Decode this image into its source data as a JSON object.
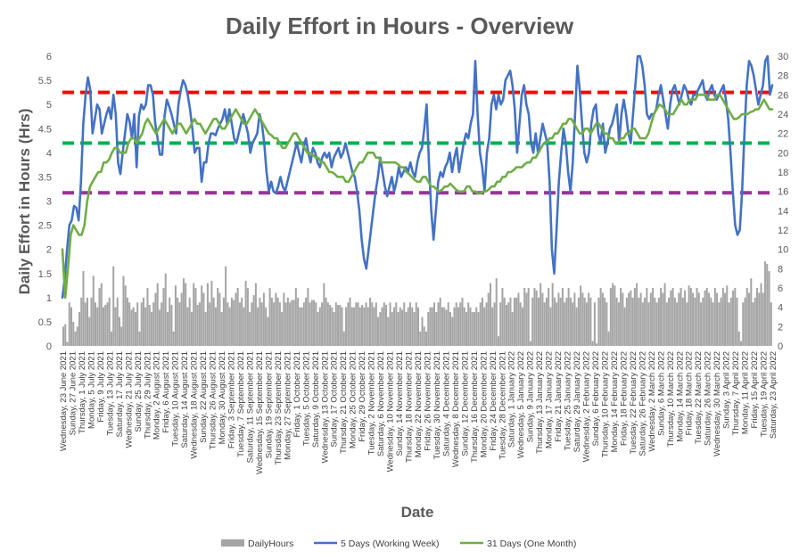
{
  "chart_data": {
    "type": "bar",
    "title": "Daily Effort in Hours - Overview",
    "xlabel": "Date",
    "ylabel": "Daily Effort in Hours (Hrs)",
    "ylim": [
      0,
      6
    ],
    "y_ticks": [
      "0",
      "0.5",
      "1",
      "1.5",
      "2",
      "2.5",
      "3",
      "3.5",
      "4",
      "4.5",
      "5",
      "5.5",
      "6"
    ],
    "y2lim": [
      0,
      30
    ],
    "y2_ticks": [
      "0",
      "2",
      "4",
      "6",
      "8",
      "10",
      "12",
      "14",
      "16",
      "18",
      "20",
      "22",
      "24",
      "26",
      "28",
      "30"
    ],
    "grid": false,
    "legend_position": "bottom",
    "x_tick_labels": [
      "Wednesday, 23 June 2021",
      "Sunday, 27 June 2021",
      "Thursday, 1 July 2021",
      "Monday, 5 July 2021",
      "Friday, 9 July 2021",
      "Tuesday, 13 July 2021",
      "Saturday, 17 July 2021",
      "Wednesday, 21 July 2021",
      "Sunday, 25 July 2021",
      "Thursday, 29 July 2021",
      "Monday, 2 August 2021",
      "Friday, 6 August 2021",
      "Tuesday, 10 August 2021",
      "Saturday, 14 August 2021",
      "Wednesday, 18 August 2021",
      "Sunday, 22 August 2021",
      "Thursday, 26 August 2021",
      "Monday, 30 August 2021",
      "Friday, 3 September 2021",
      "Tuesday, 7 September 2021",
      "Saturday, 11 September 2021",
      "Wednesday, 15 September 2021",
      "Sunday, 19 September 2021",
      "Thursday, 23 September 2021",
      "Monday, 27 September 2021",
      "Friday, 1 October 2021",
      "Tuesday, 5 October 2021",
      "Saturday, 9 October 2021",
      "Wednesday, 13 October 2021",
      "Sunday, 17 October 2021",
      "Thursday, 21 October 2021",
      "Monday, 25 October 2021",
      "Friday, 29 October 2021",
      "Tuesday, 2 November 2021",
      "Saturday, 6 November 2021",
      "Wednesday, 10 November 2021",
      "Sunday, 14 November 2021",
      "Thursday, 18 November 2021",
      "Monday, 22 November 2021",
      "Friday, 26 November 2021",
      "Tuesday, 30 November 2021",
      "Saturday, 4 December 2021",
      "Wednesday, 8 December 2021",
      "Sunday, 12 December 2021",
      "Thursday, 16 December 2021",
      "Monday, 20 December 2021",
      "Friday, 24 December 2021",
      "Tuesday, 28 December 2021",
      "Saturday, 1 January 2022",
      "Wednesday, 5 January 2022",
      "Sunday, 9 January 2022",
      "Thursday, 13 January 2022",
      "Monday, 17 January 2022",
      "Friday, 21 January 2022",
      "Tuesday, 25 January 2022",
      "Saturday, 29 January 2022",
      "Wednesday, 2 February 2022",
      "Sunday, 6 February 2022",
      "Thursday, 10 February 2022",
      "Monday, 14 February 2022",
      "Friday, 18 February 2022",
      "Tuesday, 22 February 2022",
      "Saturday, 26 February 2022",
      "Wednesday, 2 March 2022",
      "Sunday, 6 March 2022",
      "Thursday, 10 March 2022",
      "Monday, 14 March 2022",
      "Friday, 18 March 2022",
      "Tuesday, 22 March 2022",
      "Saturday, 26 March 2022",
      "Wednesday, 30 March 2022",
      "Sunday, 3 April 2022",
      "Thursday, 7 April 2022",
      "Monday, 11 April 2022",
      "Friday, 15 April 2022",
      "Tuesday, 19 April 2022",
      "Saturday, 23 April 2022"
    ],
    "colors": {
      "bars": "#a5a5a5",
      "line_5day": "#4472c4",
      "line_31day": "#70ad47",
      "ref_red": "#ff0000",
      "ref_green": "#00b050",
      "ref_purple": "#993399",
      "title": "#595959",
      "axis_text": "#595959"
    },
    "reference_lines": [
      {
        "axis": "left",
        "value": 5.25,
        "color": "#ff0000"
      },
      {
        "axis": "left",
        "value": 4.2,
        "color": "#00b050"
      },
      {
        "axis": "left",
        "value": 3.17,
        "color": "#993399"
      }
    ],
    "series": [
      {
        "name": "DailyHours",
        "axis": "left",
        "kind": "bar",
        "values": [
          0.4,
          0.45,
          0.08,
          0.9,
          0.8,
          0.5,
          0.3,
          0.4,
          0.7,
          1.0,
          1.55,
          0.9,
          1.0,
          0.6,
          1.0,
          1.45,
          0.9,
          0.8,
          1.2,
          1.3,
          0.8,
          0.85,
          0.9,
          1.0,
          0.3,
          1.65,
          0.8,
          1.0,
          0.6,
          0.4,
          1.45,
          1.25,
          1.0,
          0.9,
          0.75,
          0.8,
          0.7,
          0.9,
          0.3,
          0.9,
          1.0,
          0.8,
          1.2,
          0.85,
          0.7,
          0.9,
          1.1,
          1.3,
          0.75,
          0.9,
          1.2,
          1.5,
          0.7,
          1.0,
          0.85,
          0.3,
          1.25,
          1.0,
          0.9,
          1.1,
          1.4,
          1.3,
          0.8,
          1.0,
          0.7,
          1.3,
          1.2,
          0.85,
          0.9,
          1.25,
          1.1,
          0.7,
          1.3,
          0.9,
          1.35,
          1.0,
          0.8,
          1.2,
          1.1,
          0.7,
          1.0,
          1.65,
          0.9,
          0.8,
          1.0,
          0.95,
          1.1,
          1.2,
          0.9,
          1.0,
          0.8,
          1.35,
          1.2,
          0.7,
          0.9,
          1.05,
          1.3,
          0.8,
          1.0,
          0.9,
          1.1,
          0.8,
          0.6,
          1.2,
          1.0,
          0.9,
          1.1,
          1.0,
          0.9,
          0.7,
          1.1,
          0.9,
          1.0,
          0.9,
          0.95,
          0.95,
          1.2,
          1.0,
          0.8,
          0.8,
          0.9,
          1.0,
          1.2,
          0.9,
          0.95,
          0.95,
          0.9,
          0.7,
          0.8,
          0.9,
          1.3,
          1.0,
          0.9,
          0.85,
          0.8,
          0.7,
          0.9,
          0.85,
          0.85,
          0.8,
          0.3,
          0.8,
          0.9,
          1.0,
          0.8,
          0.8,
          0.9,
          0.9,
          0.8,
          0.85,
          0.8,
          0.9,
          0.8,
          1.0,
          0.9,
          0.8,
          0.9,
          0.6,
          0.7,
          0.8,
          0.9,
          0.85,
          0.6,
          0.9,
          0.7,
          0.8,
          0.9,
          0.7,
          0.8,
          0.75,
          0.9,
          0.7,
          0.8,
          0.9,
          0.8,
          0.7,
          0.9,
          0.8,
          0.3,
          0.6,
          0.4,
          0.3,
          0.7,
          0.8,
          0.8,
          0.9,
          0.7,
          0.9,
          1.0,
          0.8,
          0.8,
          0.75,
          0.9,
          0.7,
          0.6,
          0.8,
          0.9,
          0.8,
          0.9,
          1.0,
          0.8,
          0.7,
          0.9,
          0.8,
          0.7,
          0.7,
          0.8,
          0.7,
          0.9,
          1.0,
          0.8,
          0.9,
          1.1,
          1.3,
          0.8,
          0.9,
          1.4,
          0.2,
          0.9,
          1.2,
          1.0,
          0.85,
          0.9,
          1.0,
          0.7,
          1.0,
          1.0,
          1.1,
          0.9,
          0.8,
          1.2,
          1.1,
          1.2,
          0.1,
          1.0,
          1.2,
          1.15,
          1.0,
          1.3,
          1.1,
          0.9,
          1.0,
          1.2,
          0.8,
          1.3,
          1.0,
          0.9,
          1.1,
          1.0,
          1.2,
          0.9,
          1.0,
          1.2,
          1.0,
          0.9,
          1.1,
          0.8,
          1.0,
          1.25,
          1.1,
          1.0,
          0.9,
          1.1,
          1.0,
          0.1,
          0.9,
          0.05,
          1.0,
          1.2,
          1.1,
          1.0,
          0.9,
          0.3,
          1.2,
          1.3,
          1.25,
          1.0,
          0.9,
          1.2,
          1.1,
          0.8,
          1.0,
          1.1,
          1.15,
          1.0,
          1.2,
          1.3,
          1.0,
          1.1,
          0.9,
          1.0,
          1.2,
          0.9,
          1.1,
          1.2,
          1.0,
          0.9,
          1.0,
          1.2,
          1.1,
          1.3,
          0.9,
          1.0,
          1.15,
          1.2,
          1.0,
          0.9,
          1.1,
          1.2,
          1.0,
          1.15,
          0.9,
          1.25,
          1.2,
          1.1,
          1.0,
          1.2,
          1.1,
          0.9,
          1.0,
          1.15,
          1.2,
          1.1,
          1.0,
          0.9,
          1.2,
          1.1,
          0.9,
          1.0,
          1.2,
          1.1,
          1.25,
          0.9,
          1.0,
          1.15,
          1.2,
          1.0,
          0.3,
          0.1,
          0.9,
          1.0,
          1.2,
          1.1,
          1.4,
          0.9,
          1.0,
          1.2,
          1.1,
          1.3,
          1.1,
          1.75,
          1.7,
          1.55,
          0.9
        ]
      },
      {
        "name": "5 Days (Working Week)",
        "axis": "right",
        "kind": "line",
        "values": [
          5.0,
          7.0,
          10.0,
          12.5,
          13.0,
          14.5,
          14.3,
          13.0,
          17.0,
          23.0,
          26.0,
          27.8,
          26.5,
          22.0,
          23.5,
          25.0,
          24.5,
          22.0,
          23.0,
          24.0,
          24.7,
          23.5,
          26.0,
          24.0,
          19.0,
          17.8,
          20.0,
          22.0,
          24.0,
          23.2,
          21.5,
          24.0,
          18.5,
          23.8,
          25.0,
          24.5,
          25.0,
          27.0,
          27.0,
          26.0,
          23.0,
          21.5,
          19.8,
          19.8,
          23.8,
          25.5,
          24.8,
          24.0,
          23.0,
          22.0,
          25.0,
          26.5,
          27.5,
          27.0,
          26.0,
          24.5,
          22.5,
          20.0,
          20.5,
          20.5,
          17.0,
          19.0,
          19.0,
          21.0,
          22.0,
          22.0,
          21.8,
          22.5,
          23.0,
          23.5,
          24.5,
          23.0,
          24.5,
          23.0,
          21.5,
          21.0,
          22.0,
          23.0,
          24.0,
          23.0,
          22.0,
          20.0,
          21.0,
          21.5,
          22.0,
          24.0,
          23.0,
          21.0,
          18.0,
          16.0,
          17.0,
          16.0,
          15.8,
          16.5,
          17.5,
          16.5,
          16.0,
          17.0,
          18.0,
          19.0,
          20.0,
          21.0,
          20.0,
          19.0,
          20.5,
          21.5,
          20.0,
          19.0,
          20.5,
          20.0,
          19.0,
          18.5,
          19.5,
          20.0,
          19.5,
          20.0,
          18.5,
          19.5,
          20.0,
          20.5,
          19.5,
          20.0,
          21.0,
          20.0,
          19.0,
          18.0,
          17.5,
          16.0,
          14.0,
          11.0,
          9.0,
          8.0,
          10.0,
          12.0,
          14.0,
          16.0,
          17.5,
          19.5,
          18.0,
          16.5,
          15.5,
          16.5,
          17.5,
          16.0,
          17.0,
          18.5,
          17.5,
          18.0,
          18.5,
          18.0,
          19.0,
          18.0,
          17.5,
          19.0,
          20.0,
          20.5,
          22.5,
          25.0,
          19.0,
          14.0,
          11.0,
          14.0,
          17.0,
          18.0,
          17.5,
          18.5,
          19.0,
          20.0,
          18.0,
          19.5,
          20.5,
          18.0,
          19.5,
          21.0,
          22.0,
          21.5,
          23.0,
          24.0,
          29.5,
          24.0,
          20.0,
          18.5,
          16.0,
          20.0,
          21.5,
          25.0,
          26.0,
          24.5,
          26.0,
          25.0,
          25.5,
          27.5,
          28.0,
          28.5,
          27.0,
          24.5,
          20.0,
          23.0,
          26.0,
          27.0,
          25.0,
          24.0,
          21.0,
          20.0,
          22.0,
          20.0,
          21.5,
          23.0,
          22.0,
          21.0,
          17.0,
          10.0,
          7.5,
          12.0,
          17.0,
          20.0,
          22.5,
          21.0,
          18.0,
          16.0,
          19.0,
          24.0,
          29.0,
          26.5,
          23.0,
          20.0,
          19.0,
          20.0,
          23.0,
          24.5,
          25.0,
          22.0,
          21.0,
          23.0,
          20.0,
          21.0,
          22.5,
          23.0,
          24.0,
          25.0,
          21.0,
          24.0,
          25.5,
          24.0,
          22.0,
          21.0,
          24.0,
          27.0,
          30.0,
          30.0,
          29.0,
          27.0,
          24.0,
          23.5,
          24.0,
          24.0,
          24.5,
          26.0,
          27.0,
          25.5,
          24.0,
          22.5,
          25.0,
          26.5,
          27.0,
          26.0,
          25.0,
          26.0,
          27.0,
          26.5,
          25.5,
          25.0,
          26.0,
          26.0,
          26.5,
          27.0,
          27.5,
          26.0,
          25.5,
          26.5,
          27.0,
          26.0,
          25.5,
          26.0,
          26.5,
          27.0,
          25.5,
          23.5,
          20.0,
          16.0,
          12.5,
          11.5,
          12.0,
          16.0,
          22.0,
          27.0,
          29.5,
          29.0,
          28.0,
          26.5,
          25.0,
          26.0,
          27.0,
          29.5,
          30.0,
          26.0,
          27.0
        ]
      },
      {
        "name": "31 Days (One Month)",
        "axis": "right",
        "kind": "line",
        "values": [
          10.0,
          5.0,
          8.0,
          11.5,
          12.5,
          12.0,
          11.5,
          11.5,
          12.5,
          15.0,
          16.5,
          17.0,
          17.5,
          18.0,
          18.0,
          19.0,
          19.0,
          19.3,
          20.0,
          20.5,
          20.5,
          20.0,
          20.0,
          20.0,
          21.0,
          21.5,
          21.5,
          21.0,
          21.5,
          22.0,
          23.0,
          23.5,
          23.0,
          22.5,
          22.0,
          22.5,
          23.0,
          23.5,
          23.0,
          22.5,
          22.0,
          22.5,
          23.0,
          23.0,
          22.5,
          22.0,
          22.5,
          23.0,
          23.5,
          23.0,
          23.0,
          22.5,
          22.0,
          22.5,
          23.0,
          23.5,
          23.5,
          23.0,
          22.5,
          22.5,
          23.0,
          23.5,
          24.0,
          24.5,
          24.0,
          23.5,
          23.0,
          23.0,
          23.5,
          24.0,
          24.5,
          24.0,
          23.5,
          23.0,
          22.5,
          22.0,
          21.8,
          21.5,
          21.5,
          21.0,
          20.5,
          20.5,
          21.0,
          21.5,
          22.0,
          22.0,
          21.5,
          21.0,
          20.5,
          20.0,
          20.0,
          19.8,
          19.5,
          19.5,
          19.0,
          19.0,
          18.5,
          18.0,
          18.0,
          17.8,
          17.5,
          17.5,
          17.5,
          17.0,
          17.0,
          17.5,
          18.0,
          18.5,
          19.0,
          19.0,
          19.5,
          20.0,
          20.0,
          20.0,
          19.5,
          19.5,
          19.0,
          19.0,
          19.0,
          19.0,
          19.0,
          19.0,
          18.8,
          18.5,
          18.5,
          18.0,
          17.8,
          17.5,
          17.2,
          17.0,
          17.0,
          17.5,
          17.5,
          17.0,
          16.5,
          16.5,
          16.2,
          16.0,
          16.2,
          16.5,
          16.5,
          16.8,
          16.5,
          16.2,
          16.0,
          16.0,
          16.0,
          16.5,
          16.5,
          16.0,
          16.0,
          15.8,
          15.8,
          16.0,
          16.0,
          16.2,
          16.5,
          16.5,
          17.0,
          17.0,
          17.5,
          17.5,
          18.0,
          18.0,
          18.2,
          18.5,
          18.5,
          18.5,
          18.8,
          19.0,
          19.0,
          19.5,
          19.5,
          20.0,
          20.5,
          21.0,
          21.0,
          21.5,
          21.5,
          22.0,
          22.0,
          22.5,
          23.0,
          23.0,
          23.5,
          23.5,
          23.0,
          22.5,
          22.0,
          22.0,
          22.5,
          22.5,
          22.0,
          22.5,
          23.0,
          23.0,
          22.5,
          22.0,
          22.0,
          21.5,
          21.5,
          21.0,
          21.0,
          21.5,
          21.5,
          22.0,
          22.0,
          22.5,
          22.5,
          22.0,
          21.5,
          21.5,
          21.5,
          22.0,
          23.0,
          24.0,
          24.5,
          25.0,
          24.8,
          24.5,
          24.0,
          24.0,
          24.0,
          24.5,
          25.0,
          25.5,
          25.0,
          25.0,
          25.5,
          25.5,
          25.5,
          26.0,
          26.0,
          26.0,
          26.0,
          25.5,
          25.5,
          25.5,
          26.0,
          26.0,
          25.5,
          25.0,
          24.5,
          24.0,
          23.5,
          23.5,
          23.7,
          24.0,
          24.0,
          24.0,
          24.2,
          24.3,
          24.5,
          24.5,
          25.0,
          25.5,
          25.0,
          24.5,
          24.5
        ]
      }
    ]
  },
  "legend": [
    {
      "label": "DailyHours",
      "key": "bars"
    },
    {
      "label": "5 Days (Working Week)",
      "key": "line_5day"
    },
    {
      "label": "31 Days (One Month)",
      "key": "line_31day"
    }
  ]
}
